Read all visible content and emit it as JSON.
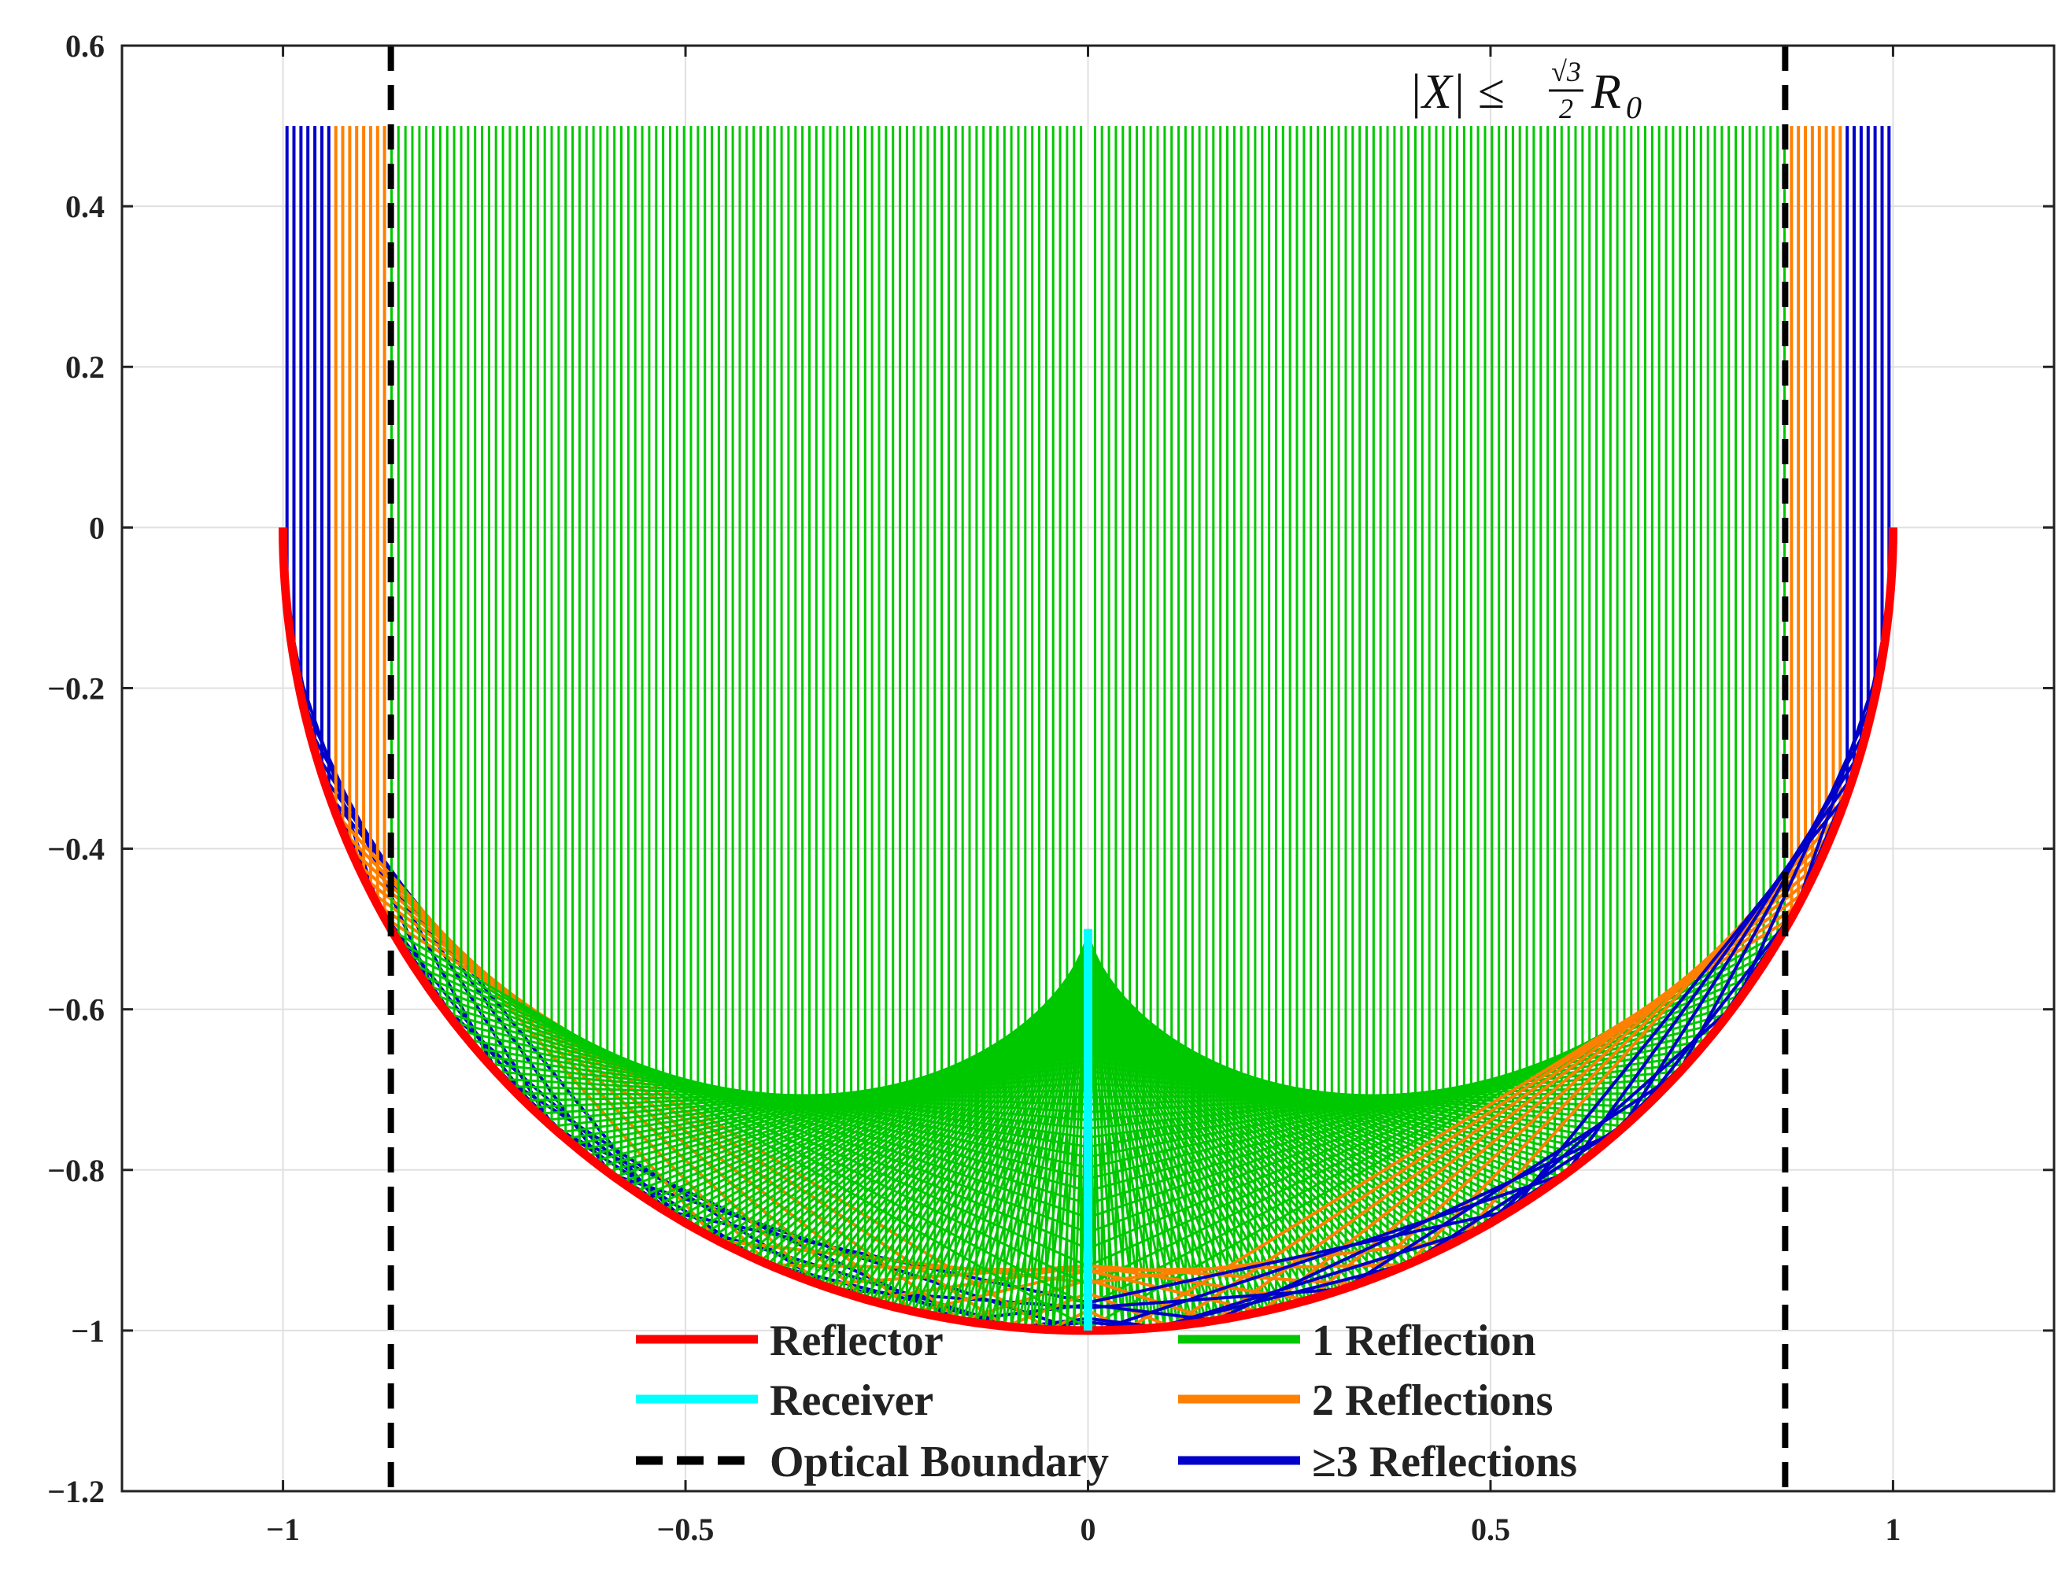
{
  "chart_data": {
    "type": "line",
    "xlim": [
      -1.2,
      1.2
    ],
    "ylim": [
      -1.2,
      0.6
    ],
    "x_ticks": [
      {
        "value": -1,
        "label": "−1"
      },
      {
        "value": -0.5,
        "label": "−0.5"
      },
      {
        "value": 0,
        "label": "0"
      },
      {
        "value": 0.5,
        "label": "0.5"
      },
      {
        "value": 1,
        "label": "1"
      }
    ],
    "y_ticks": [
      {
        "value": 0.6,
        "label": "0.6"
      },
      {
        "value": 0.4,
        "label": "0.4"
      },
      {
        "value": 0.2,
        "label": "0.2"
      },
      {
        "value": 0,
        "label": "0"
      },
      {
        "value": -0.2,
        "label": "−0.2"
      },
      {
        "value": -0.4,
        "label": "−0.4"
      },
      {
        "value": -0.6,
        "label": "−0.6"
      },
      {
        "value": -0.8,
        "label": "−0.8"
      },
      {
        "value": -1,
        "label": "−1"
      },
      {
        "value": -1.2,
        "label": "−1.2"
      }
    ],
    "grid": true,
    "reflector": {
      "shape": "semicircle",
      "center": [
        0,
        0
      ],
      "radius": 1.0,
      "color": "#ff0000"
    },
    "receiver": {
      "x": 0,
      "y_range": [
        -1.0,
        -0.5
      ],
      "color": "#00ffff"
    },
    "optical_boundary": {
      "x": [
        -0.866,
        0.866
      ],
      "color": "#000000"
    },
    "incident_ray_top": 0.5,
    "ray_groups": [
      {
        "name": "1 Reflection",
        "color": "#00c800",
        "abs_x_range": [
          0.0,
          0.866
        ]
      },
      {
        "name": "2 Reflections",
        "color": "#ff8000",
        "abs_x_range": [
          0.866,
          0.94
        ]
      },
      {
        "name": "≥3 Reflections",
        "color": "#0000c8",
        "abs_x_range": [
          0.94,
          0.99
        ]
      }
    ],
    "legend": {
      "position": "bottom-center",
      "entries": [
        {
          "label": "Reflector",
          "color": "#ff0000",
          "style": "solid"
        },
        {
          "label": "1 Reflection",
          "color": "#00c800",
          "style": "solid"
        },
        {
          "label": "Receiver",
          "color": "#00ffff",
          "style": "solid"
        },
        {
          "label": "2 Reflections",
          "color": "#ff8000",
          "style": "solid"
        },
        {
          "label": "Optical Boundary",
          "color": "#000000",
          "style": "dashed"
        },
        {
          "label": "≥3 Reflections",
          "color": "#0000c8",
          "style": "solid"
        }
      ]
    },
    "annotation": {
      "text": "|X| ≤ √3/2 R0",
      "parts": {
        "lhs": "|X| ≤",
        "num": "√3",
        "den": "2",
        "var": "R",
        "sub": "0"
      }
    }
  }
}
